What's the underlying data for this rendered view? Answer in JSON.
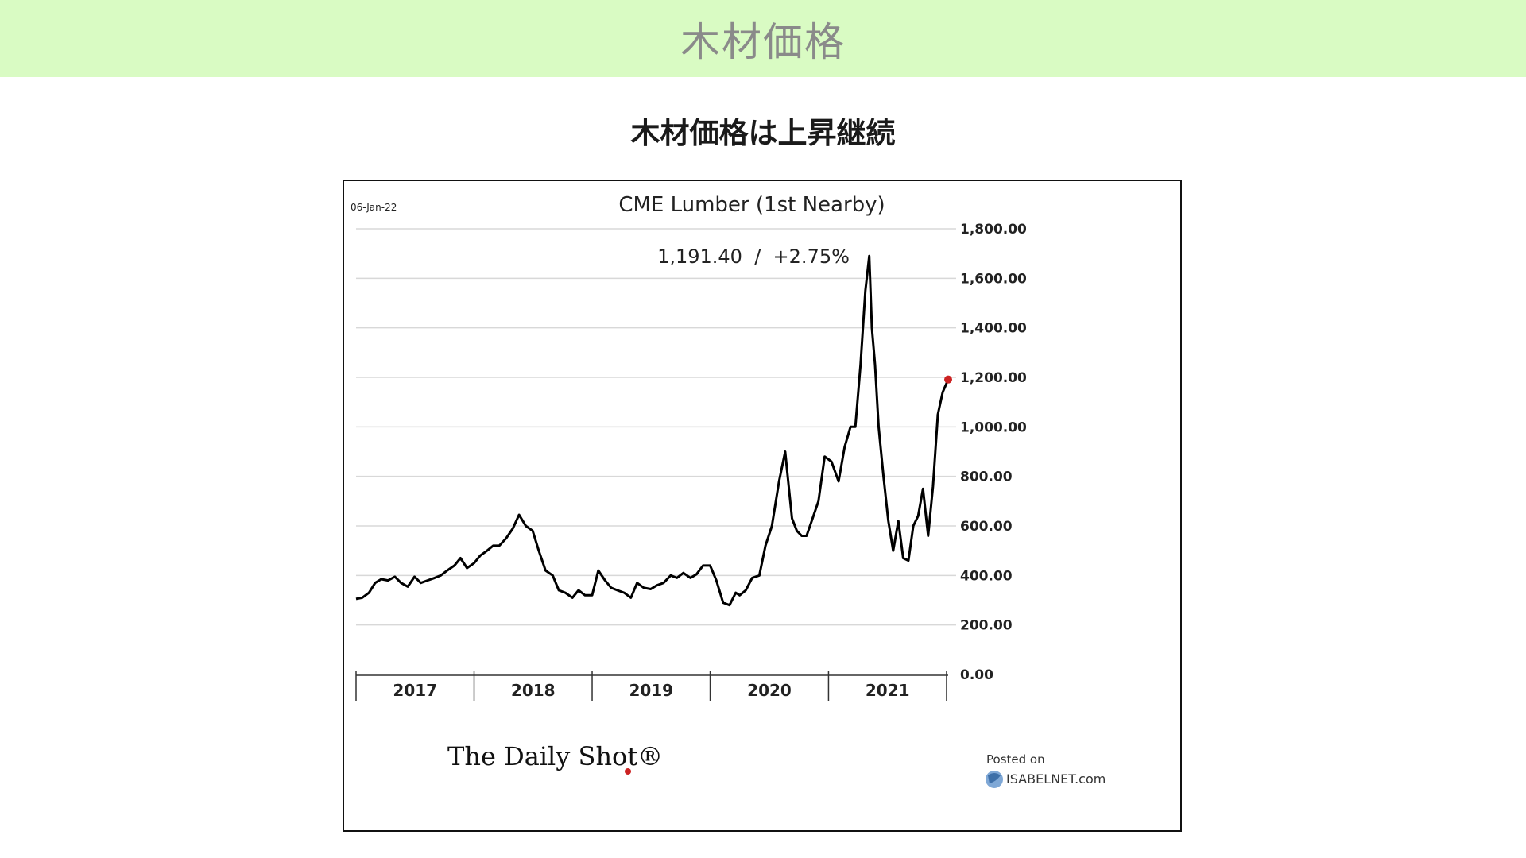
{
  "header": {
    "banner_title": "木材価格",
    "subtitle": "木材価格は上昇継続"
  },
  "chart_data": {
    "type": "line",
    "title": "CME Lumber (1st Nearby)",
    "date_label": "06-Jan-22",
    "last_value_label": "1,191.40  /  +2.75%",
    "last_value": 1191.4,
    "change_pct": 2.75,
    "xlabel": "",
    "ylabel": "",
    "ylim": [
      0,
      1800
    ],
    "y_ticks": [
      "0.00",
      "200.00",
      "400.00",
      "600.00",
      "800.00",
      "1,000.00",
      "1,200.00",
      "1,400.00",
      "1,600.00",
      "1,800.00"
    ],
    "y_tick_values": [
      0,
      200,
      400,
      600,
      800,
      1000,
      1200,
      1400,
      1600,
      1800
    ],
    "x_ticks": [
      "2017",
      "2018",
      "2019",
      "2020",
      "2021"
    ],
    "xlim": [
      "2017-01-01",
      "2022-01-06"
    ],
    "grid": true,
    "legend": "none",
    "line_color": "#000000",
    "marker_color": "#cc2222",
    "source_logo": "The Daily Shot®",
    "posted_on_label": "Posted on",
    "posted_site": "ISABELNET.com",
    "series": [
      {
        "x": [
          "2017-01-01",
          "2017-01-20",
          "2017-02-10",
          "2017-03-01",
          "2017-03-20",
          "2017-04-10",
          "2017-05-01",
          "2017-05-20",
          "2017-06-10",
          "2017-07-01",
          "2017-07-20",
          "2017-08-10",
          "2017-09-01",
          "2017-09-20",
          "2017-10-10",
          "2017-11-01",
          "2017-11-20",
          "2017-12-10",
          "2018-01-01",
          "2018-01-20",
          "2018-02-10",
          "2018-03-01",
          "2018-03-20",
          "2018-04-10",
          "2018-05-01",
          "2018-05-20",
          "2018-06-10",
          "2018-07-01",
          "2018-07-20",
          "2018-08-10",
          "2018-09-01",
          "2018-09-20",
          "2018-10-10",
          "2018-11-01",
          "2018-11-20",
          "2018-12-10",
          "2019-01-01",
          "2019-01-20",
          "2019-02-10",
          "2019-03-01",
          "2019-03-20",
          "2019-04-10",
          "2019-05-01",
          "2019-05-20",
          "2019-06-10",
          "2019-07-01",
          "2019-07-20",
          "2019-08-10",
          "2019-09-01",
          "2019-09-20",
          "2019-10-10",
          "2019-11-01",
          "2019-11-20",
          "2019-12-10",
          "2020-01-01",
          "2020-01-20",
          "2020-02-10",
          "2020-03-01",
          "2020-03-20",
          "2020-04-01",
          "2020-04-20",
          "2020-05-10",
          "2020-06-01",
          "2020-06-20",
          "2020-07-10",
          "2020-08-01",
          "2020-08-20",
          "2020-09-10",
          "2020-09-25",
          "2020-10-10",
          "2020-10-25",
          "2020-11-10",
          "2020-12-01",
          "2020-12-20",
          "2021-01-10",
          "2021-02-01",
          "2021-02-20",
          "2021-03-10",
          "2021-03-25",
          "2021-04-10",
          "2021-04-25",
          "2021-05-07",
          "2021-05-15",
          "2021-05-25",
          "2021-06-05",
          "2021-06-20",
          "2021-07-05",
          "2021-07-20",
          "2021-08-05",
          "2021-08-20",
          "2021-09-05",
          "2021-09-20",
          "2021-10-05",
          "2021-10-20",
          "2021-11-05",
          "2021-11-20",
          "2021-12-05",
          "2021-12-20",
          "2022-01-06"
        ],
        "y": [
          305,
          310,
          330,
          370,
          385,
          380,
          395,
          370,
          355,
          395,
          370,
          380,
          390,
          400,
          420,
          440,
          470,
          430,
          450,
          480,
          500,
          520,
          520,
          550,
          590,
          645,
          600,
          580,
          500,
          420,
          400,
          340,
          330,
          310,
          340,
          320,
          320,
          420,
          380,
          350,
          340,
          330,
          310,
          370,
          350,
          345,
          360,
          370,
          400,
          390,
          410,
          390,
          405,
          440,
          440,
          380,
          290,
          280,
          330,
          320,
          340,
          390,
          400,
          520,
          600,
          780,
          900,
          630,
          580,
          560,
          560,
          620,
          700,
          880,
          860,
          780,
          920,
          1000,
          1000,
          1250,
          1550,
          1690,
          1400,
          1250,
          1000,
          800,
          620,
          500,
          620,
          470,
          460,
          600,
          640,
          750,
          560,
          760,
          1050,
          1140,
          1191.4
        ]
      }
    ]
  }
}
